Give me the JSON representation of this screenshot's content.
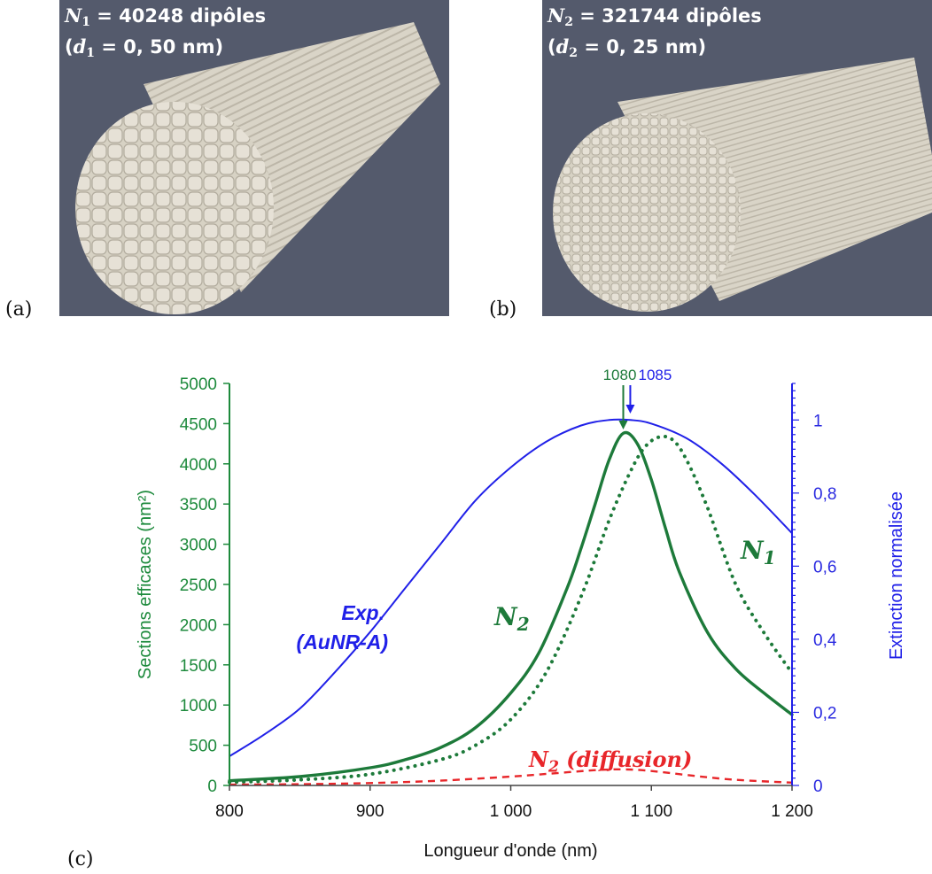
{
  "panels": {
    "a": {
      "label": "(a)",
      "line1_var": "N",
      "line1_sub": "1",
      "line1_rest": " = 40248 dipôles",
      "line2_open": "(",
      "line2_var": "d",
      "line2_sub": "1",
      "line2_rest": " = 0, 50 nm)"
    },
    "b": {
      "label": "(b)",
      "line1_var": "N",
      "line1_sub": "2",
      "line1_rest": " = 321744 dipôles",
      "line2_open": "(",
      "line2_var": "d",
      "line2_sub": "2",
      "line2_rest": " = 0, 25 nm)"
    },
    "c": {
      "label": "(c)"
    }
  },
  "colors": {
    "background_3d": "#545a6c",
    "rod": "#ddd8cc",
    "green": "#1d7a3a",
    "green_axis": "#1d8a3c",
    "blue": "#2020e8",
    "red": "#e8262a"
  },
  "chart_data": {
    "type": "line",
    "xlabel": "Longueur d'onde (nm)",
    "ylabel_left": "Sections efficaces (nm²)",
    "ylabel_right": "Extinction normalisée",
    "xlim": [
      800,
      1200
    ],
    "ylim_left": [
      0,
      5000
    ],
    "ylim_right": [
      0,
      1.1
    ],
    "x_ticks": [
      800,
      900,
      1000,
      1100,
      1200
    ],
    "x_tick_labels": [
      "800",
      "900",
      "1 000",
      "1 100",
      "1 200"
    ],
    "y_left_ticks": [
      0,
      500,
      1000,
      1500,
      2000,
      2500,
      3000,
      3500,
      4000,
      4500,
      5000
    ],
    "y_left_tick_labels": [
      "0",
      "500",
      "1000",
      "1500",
      "2000",
      "2500",
      "3000",
      "3500",
      "4000",
      "4500",
      "5000"
    ],
    "y_right_ticks": [
      0,
      0.2,
      0.4,
      0.6,
      0.8,
      1.0
    ],
    "y_right_tick_labels": [
      "0",
      "0,2",
      "0,4",
      "0,6",
      "0,8",
      "1"
    ],
    "annotations": [
      {
        "text": "1080",
        "x": 1080,
        "color": "green"
      },
      {
        "text": "1085",
        "x": 1085,
        "color": "blue"
      }
    ],
    "series": [
      {
        "name": "N2",
        "label_var": "N",
        "label_sub": "2",
        "axis": "left",
        "style": "solid",
        "color": "green",
        "x": [
          800,
          850,
          900,
          925,
          950,
          975,
          1000,
          1020,
          1040,
          1050,
          1060,
          1070,
          1080,
          1090,
          1100,
          1110,
          1120,
          1140,
          1160,
          1180,
          1200
        ],
        "y": [
          60,
          110,
          220,
          320,
          470,
          720,
          1150,
          1650,
          2450,
          2950,
          3500,
          4050,
          4380,
          4250,
          3800,
          3200,
          2650,
          1900,
          1450,
          1150,
          880
        ]
      },
      {
        "name": "N1",
        "label_var": "N",
        "label_sub": "1",
        "axis": "left",
        "style": "dotted",
        "color": "green",
        "x": [
          800,
          850,
          900,
          950,
          975,
          1000,
          1025,
          1050,
          1070,
          1085,
          1095,
          1105,
          1115,
          1125,
          1140,
          1160,
          1180,
          1200
        ],
        "y": [
          40,
          70,
          140,
          320,
          500,
          820,
          1400,
          2350,
          3300,
          3900,
          4200,
          4330,
          4300,
          4050,
          3450,
          2500,
          1900,
          1400
        ]
      },
      {
        "name": "Exp.",
        "label_line1": "Exp.",
        "label_line2": "(AuNR-A)",
        "axis": "right",
        "style": "solid",
        "color": "blue",
        "x": [
          800,
          825,
          850,
          875,
          900,
          925,
          950,
          975,
          1000,
          1025,
          1050,
          1070,
          1085,
          1100,
          1125,
          1150,
          1175,
          1200
        ],
        "y": [
          0.08,
          0.14,
          0.21,
          0.31,
          0.42,
          0.54,
          0.66,
          0.78,
          0.87,
          0.94,
          0.985,
          1.0,
          1.0,
          0.99,
          0.95,
          0.88,
          0.79,
          0.69
        ]
      },
      {
        "name": "N2 (diffusion)",
        "label_var": "N",
        "label_sub": "2",
        "label_rest": " (diffusion)",
        "axis": "left",
        "style": "dashed",
        "color": "red",
        "x": [
          800,
          850,
          900,
          950,
          1000,
          1030,
          1060,
          1080,
          1100,
          1130,
          1160,
          1200
        ],
        "y": [
          10,
          15,
          30,
          60,
          110,
          150,
          190,
          200,
          180,
          120,
          70,
          35
        ]
      }
    ]
  }
}
